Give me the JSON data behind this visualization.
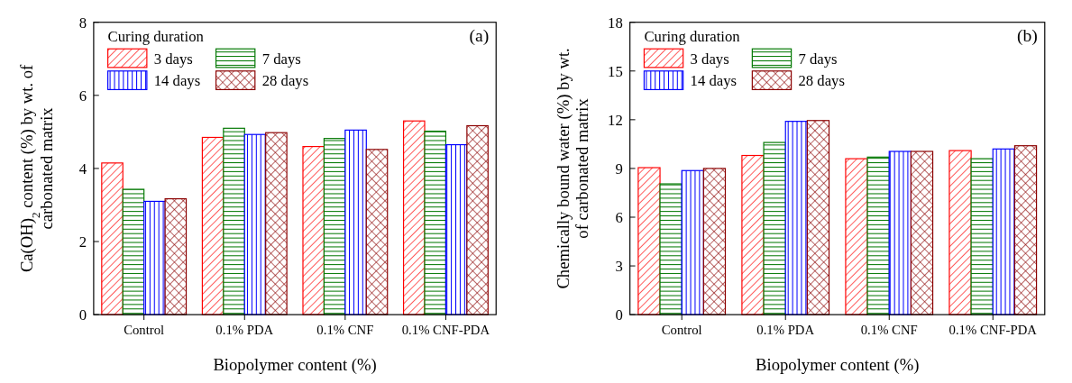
{
  "chart_data": [
    {
      "type": "bar",
      "title": "(a)",
      "xlabel": "Biopolymer content (%)",
      "ylabel": "Ca(OH)$_{2}$ content (%) by wt. of carbonated matrix",
      "legend_title": "Curing duration",
      "legend": "top left",
      "categories": [
        "Control",
        "0.1% PDA",
        "0.1% CNF",
        "0.1% CNF-PDA"
      ],
      "ylim": [
        0,
        8
      ],
      "yticks": [
        0,
        2,
        4,
        6,
        8
      ],
      "series": [
        {
          "name": "3 days",
          "color": "#ff0000",
          "values": [
            4.15,
            4.85,
            4.6,
            5.3
          ]
        },
        {
          "name": "7 days",
          "color": "#007700",
          "values": [
            3.43,
            5.1,
            4.82,
            5.02
          ]
        },
        {
          "name": "14 days",
          "color": "#0000ff",
          "values": [
            3.1,
            4.93,
            5.05,
            4.65
          ]
        },
        {
          "name": "28 days",
          "color": "#8b0000",
          "values": [
            3.17,
            4.98,
            4.52,
            5.17
          ]
        }
      ]
    },
    {
      "type": "bar",
      "title": "(b)",
      "xlabel": "Biopolymer content (%)",
      "ylabel": "Chemically bound water (%) by wt. of carbonated matrix",
      "legend_title": "Curing duration",
      "legend": "top left",
      "categories": [
        "Control",
        "0.1% PDA",
        "0.1% CNF",
        "0.1% CNF-PDA"
      ],
      "ylim": [
        0,
        18
      ],
      "yticks": [
        0,
        3,
        6,
        9,
        12,
        15,
        18
      ],
      "series": [
        {
          "name": "3 days",
          "color": "#ff0000",
          "values": [
            9.05,
            9.8,
            9.6,
            10.1
          ]
        },
        {
          "name": "7 days",
          "color": "#007700",
          "values": [
            8.05,
            10.6,
            9.7,
            9.6
          ]
        },
        {
          "name": "14 days",
          "color": "#0000ff",
          "values": [
            8.87,
            11.9,
            10.05,
            10.2
          ]
        },
        {
          "name": "28 days",
          "color": "#8b0000",
          "values": [
            9.0,
            11.95,
            10.05,
            10.4
          ]
        }
      ]
    }
  ]
}
